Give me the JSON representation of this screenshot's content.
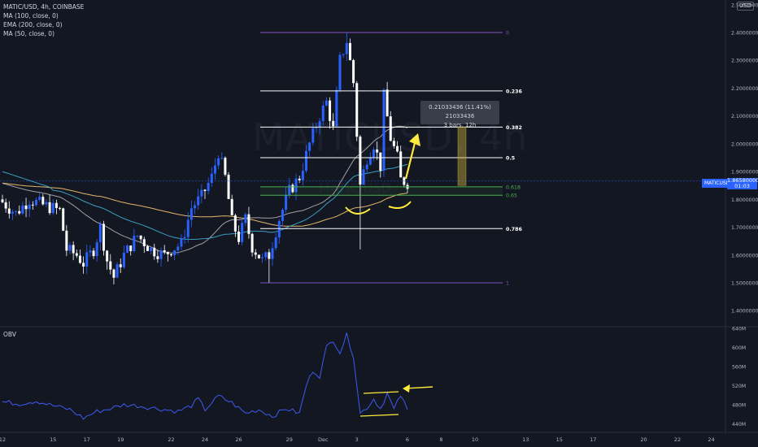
{
  "legend": {
    "symbol": "MATIC/USD, 4h, COINBASE",
    "ma100": "MA (100, close, 0)",
    "ema200": "EMA (200, close, 0)",
    "ma50": "MA (50, close, 0)"
  },
  "watermark": "MATICUSD, 4h",
  "watermark_sub": "MATIC/USD",
  "obv_label": "OBV",
  "currency": "USD",
  "price_tag": {
    "symbol": "MATICUSD",
    "price": "1.86580000",
    "countdown": "01:03"
  },
  "measure_tip": {
    "line1": "0.21033436 (11.41%) 21033436",
    "line2": "3 bars, 12h"
  },
  "colors": {
    "background": "#131722",
    "up": "#2962ff",
    "down": "#ffffff",
    "ma100": "#a59ea3",
    "ema200": "#e2b66a",
    "ma50": "#3b9ec2",
    "obv": "#3d5af1",
    "fib": "#ffffff",
    "fib_green": "#4caf50",
    "fib_purple": "#7e57c2",
    "annotation": "#ffeb3b"
  },
  "chart_data": [
    {
      "type": "candlestick",
      "interval": "4h",
      "price_axis": {
        "ticks": [
          2.5,
          2.4,
          2.3,
          2.2,
          2.1,
          2.0,
          1.9,
          1.8,
          1.7,
          1.6,
          1.5,
          1.4
        ],
        "tick_labels": [
          "2.50000000",
          "2.40000000",
          "2.30000000",
          "2.20000000",
          "2.10000000",
          "2.00000000",
          "1.90000000",
          "1.80000000",
          "1.70000000",
          "1.60000000",
          "1.50000000",
          "1.40000000"
        ],
        "ylim": [
          1.3,
          2.52
        ]
      },
      "time_axis": {
        "labels": [
          "12",
          "15",
          "17",
          "19",
          "22",
          "24",
          "26",
          "29",
          "Dec",
          "3",
          "6",
          "8",
          "10",
          "13",
          "15",
          "17",
          "20",
          "22",
          "24"
        ],
        "label_index": [
          0,
          15,
          25,
          35,
          50,
          60,
          70,
          85,
          95,
          105,
          120,
          130,
          140,
          155,
          165,
          175,
          190,
          200,
          210
        ]
      },
      "fibonacci": {
        "levels": [
          {
            "label": "0",
            "price": 2.4
          },
          {
            "label": "0.236",
            "price": 2.19
          },
          {
            "label": "0.382",
            "price": 2.06
          },
          {
            "label": "0.5",
            "price": 1.95
          },
          {
            "label": "0.618",
            "price": 1.845
          },
          {
            "label": "0.65",
            "price": 1.815
          },
          {
            "label": "0.786",
            "price": 1.695
          },
          {
            "label": "1",
            "price": 1.5
          }
        ]
      },
      "measure": {
        "from_price": 1.85,
        "to_price": 2.06
      },
      "current_price": 1.8658
    },
    {
      "type": "line",
      "series_name": "OBV",
      "y_axis": {
        "ticks": [
          640,
          600,
          560,
          520,
          480,
          440
        ],
        "tick_labels": [
          "640M",
          "600M",
          "560M",
          "520M",
          "480M",
          "440M"
        ],
        "ylim": [
          420,
          650
        ]
      }
    }
  ]
}
